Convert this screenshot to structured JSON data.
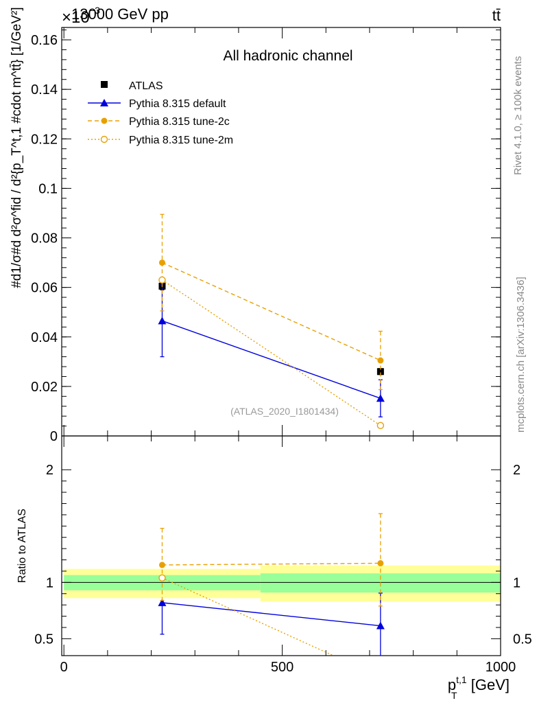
{
  "header": {
    "energy_label": "13000 GeV pp",
    "process_label": "tt̄",
    "axis_exponent": "×10",
    "axis_exponent_power": "−3"
  },
  "side_labels": {
    "rivet": "Rivet 4.1.0, ≥ 100k events",
    "mcplots": "mcplots.cern.ch [arXiv:1306.3436]"
  },
  "chart_data": [
    {
      "type": "line",
      "panel": "main",
      "title": "All hadronic channel",
      "analysis_id": "(ATLAS_2020_I1801434)",
      "ylabel": "#d\\frac{1}{σ}#d\\frac{d^{2}σ^{fid}}{d^{2}{p_{T}^{t,1} #cdot m^{tt}}} [1/GeV²]",
      "ylabel_display": "#d1/σ#d d²σ^fid / d²{p_T^t,1 #cdot m^tt̄} [1/GeV²]",
      "xlim": [
        -5,
        1000
      ],
      "ylim": [
        0,
        0.165
      ],
      "yticks": [
        0,
        0.02,
        0.04,
        0.06,
        0.08,
        0.1,
        0.12,
        0.14,
        0.16
      ],
      "ytick_labels": [
        "0",
        "0.02",
        "0.04",
        "0.06",
        "0.08",
        "0.1",
        "0.12",
        "0.14",
        "0.16"
      ],
      "legend": {
        "placement": "top-left",
        "entries": [
          "ATLAS",
          "Pythia 8.315 default",
          "Pythia 8.315 tune-2c",
          "Pythia 8.315 tune-2m"
        ]
      },
      "series": [
        {
          "name": "ATLAS",
          "color": "#000000",
          "style": "square",
          "x": [
            225,
            725
          ],
          "y": [
            0.0605,
            0.026
          ],
          "err": [
            0.0015,
            0.0012
          ]
        },
        {
          "name": "Pythia 8.315 default",
          "color": "#0000dd",
          "style": "solid-triangle",
          "x": [
            225,
            725
          ],
          "y": [
            0.0465,
            0.0152
          ],
          "err": [
            0.0145,
            0.0075
          ]
        },
        {
          "name": "Pythia 8.315 tune-2c",
          "color": "#e8a000",
          "style": "dashed-circle",
          "x": [
            225,
            725
          ],
          "y": [
            0.07,
            0.0305
          ],
          "err": [
            0.0195,
            0.0118
          ]
        },
        {
          "name": "Pythia 8.315 tune-2m",
          "color": "#e8a000",
          "style": "dotted-open-circle",
          "x": [
            225,
            725
          ],
          "y": [
            0.063,
            0.0042
          ],
          "err": [
            0.0,
            0.0
          ]
        }
      ]
    },
    {
      "type": "line",
      "panel": "ratio",
      "ylabel": "Ratio to ATLAS",
      "xlabel": "p_T^{t,1} [GeV]",
      "xlabel_main": "p",
      "xlabel_sub": "T",
      "xlabel_sup": "t,1",
      "xlabel_unit": " [GeV]",
      "xlim": [
        -5,
        1000
      ],
      "ylim": [
        0.35,
        2.3
      ],
      "xticks": [
        0,
        500,
        1000
      ],
      "xtick_labels": [
        "0",
        "500",
        "1000"
      ],
      "yticks": [
        0.5,
        1,
        2
      ],
      "ytick_labels": [
        "0.5",
        "1",
        "2"
      ],
      "bands": [
        {
          "x0": 0,
          "x1": 450,
          "yellow": [
            0.86,
            1.12
          ],
          "green": [
            0.93,
            1.065
          ]
        },
        {
          "x0": 450,
          "x1": 1000,
          "yellow": [
            0.83,
            1.15
          ],
          "green": [
            0.91,
            1.08
          ]
        }
      ],
      "series": [
        {
          "name": "Pythia 8.315 default",
          "color": "#0000dd",
          "style": "solid-triangle",
          "x": [
            225,
            725
          ],
          "y": [
            0.82,
            0.615
          ],
          "lo": [
            0.54,
            0.32
          ],
          "hi": [
            0.82,
            0.905
          ]
        },
        {
          "name": "Pythia 8.315 tune-2c",
          "color": "#e8a000",
          "style": "dashed-circle",
          "x": [
            225,
            725
          ],
          "y": [
            1.155,
            1.17
          ],
          "lo": [
            0.84,
            0.79
          ],
          "hi": [
            1.48,
            1.61
          ]
        },
        {
          "name": "Pythia 8.315 tune-2m",
          "color": "#e8a000",
          "style": "dotted-open-circle",
          "x": [
            225,
            725
          ],
          "y": [
            1.04,
            0.16
          ],
          "lo": [
            1.04,
            0.16
          ],
          "hi": [
            1.04,
            0.16
          ]
        }
      ]
    }
  ]
}
